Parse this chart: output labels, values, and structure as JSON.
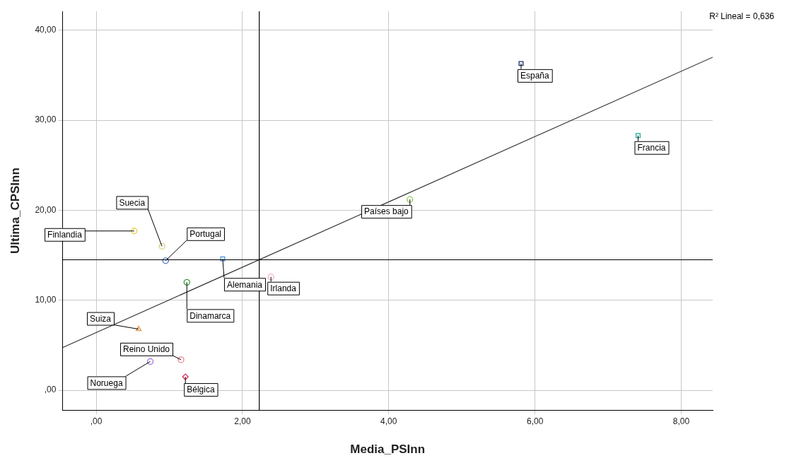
{
  "chart_data": {
    "type": "scatter",
    "xlabel": "Media_PSInn",
    "ylabel": "Ultima_CPSInn",
    "annotations": [
      "R² Lineal = 0,636"
    ],
    "xlim": [
      -0.46,
      8.43
    ],
    "ylim": [
      -2.2,
      42.1
    ],
    "xticks": [
      {
        "value": 0,
        "label": ",00"
      },
      {
        "value": 2,
        "label": "2,00"
      },
      {
        "value": 4,
        "label": "4,00"
      },
      {
        "value": 6,
        "label": "6,00"
      },
      {
        "value": 8,
        "label": "8,00"
      }
    ],
    "yticks": [
      {
        "value": 0,
        "label": ",00"
      },
      {
        "value": 10,
        "label": "10,00"
      },
      {
        "value": 20,
        "label": "20,00"
      },
      {
        "value": 30,
        "label": "30,00"
      },
      {
        "value": 40,
        "label": "40,00"
      }
    ],
    "grid": true,
    "legend": false,
    "ref_lines": [
      {
        "axis": "x",
        "value": 2.23,
        "color": "#000000"
      },
      {
        "axis": "y",
        "value": 14.5,
        "color": "#000000"
      }
    ],
    "series": [
      {
        "name": "España",
        "color": "#1a2a6c",
        "marker": "square",
        "x": [
          5.81
        ],
        "values": [
          36.3
        ]
      },
      {
        "name": "Francia",
        "color": "#1aa99a",
        "marker": "square",
        "x": [
          7.41
        ],
        "values": [
          28.3
        ]
      },
      {
        "name": "Países bajo",
        "color": "#8cc850",
        "marker": "circle",
        "x": [
          4.29
        ],
        "values": [
          21.2
        ]
      },
      {
        "name": "Finlandia",
        "color": "#e8d040",
        "marker": "circle",
        "x": [
          0.52
        ],
        "values": [
          17.7
        ]
      },
      {
        "name": "Suecia",
        "color": "#d8d080",
        "marker": "circle",
        "x": [
          0.9
        ],
        "values": [
          16.0
        ]
      },
      {
        "name": "Portugal",
        "color": "#5070c0",
        "marker": "circle",
        "x": [
          0.95
        ],
        "values": [
          14.4
        ]
      },
      {
        "name": "Alemania",
        "color": "#4a90e0",
        "marker": "square",
        "x": [
          1.73
        ],
        "values": [
          14.6
        ]
      },
      {
        "name": "Dinamarca",
        "color": "#3a9a3a",
        "marker": "circle",
        "x": [
          1.24
        ],
        "values": [
          12.0
        ]
      },
      {
        "name": "Irlanda",
        "color": "#f0b0c0",
        "marker": "circle",
        "x": [
          2.39
        ],
        "values": [
          12.6
        ]
      },
      {
        "name": "Suiza",
        "color": "#e09040",
        "marker": "triangle",
        "x": [
          0.58
        ],
        "values": [
          6.8
        ]
      },
      {
        "name": "Reino Unido",
        "color": "#f08090",
        "marker": "circle",
        "x": [
          1.16
        ],
        "values": [
          3.4
        ]
      },
      {
        "name": "Noruega",
        "color": "#a070e0",
        "marker": "circle",
        "x": [
          0.74
        ],
        "values": [
          3.2
        ]
      },
      {
        "name": "Bélgica",
        "color": "#e0305a",
        "marker": "diamond",
        "x": [
          1.22
        ],
        "values": [
          1.5
        ]
      },
      {
        "type": "line",
        "color": "#333333",
        "marker": "none",
        "x": [
          -0.46,
          8.43
        ],
        "values": [
          4.75,
          37.0
        ]
      }
    ]
  }
}
